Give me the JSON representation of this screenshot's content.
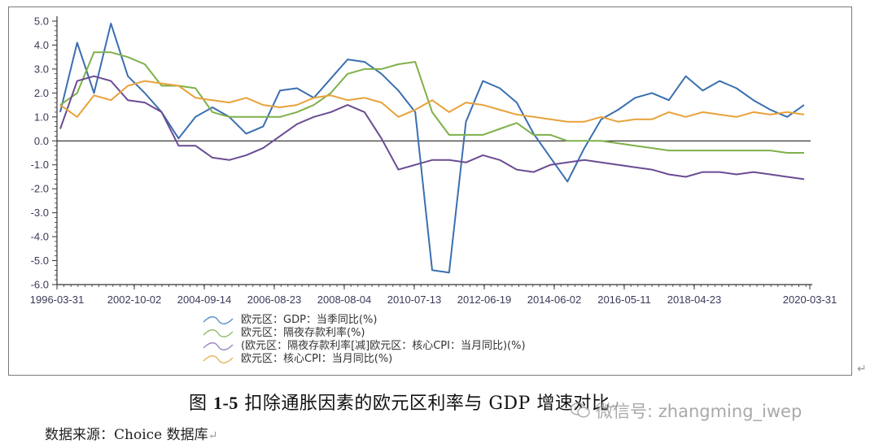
{
  "chart_data": {
    "type": "line",
    "title": "图 1-5  扣除通胀因素的欧元区利率与 GDP 增速对比",
    "xlabel": "",
    "ylabel": "",
    "ylim": [
      -6.0,
      5.0
    ],
    "yticks": [
      "5.0",
      "4.0",
      "3.0",
      "2.0",
      "1.0",
      "0.0",
      "-1.0",
      "-2.0",
      "-3.0",
      "-4.0",
      "-5.0",
      "-6.0"
    ],
    "xticks": [
      "1996-03-31",
      "2002-10-02",
      "2004-09-14",
      "2006-08-23",
      "2008-08-04",
      "2010-07-13",
      "2012-06-19",
      "2014-06-02",
      "2016-05-11",
      "2018-04-23",
      "2020-03-31"
    ],
    "grid": false,
    "legend_position": "bottom",
    "zero_line": true,
    "x": [
      "1999-01",
      "1999-04",
      "1999-07",
      "1999-10",
      "2000-01",
      "2000-07",
      "2001-01",
      "2001-07",
      "2002-01",
      "2002-07",
      "2003-01",
      "2003-07",
      "2004-01",
      "2004-07",
      "2005-01",
      "2005-07",
      "2006-01",
      "2006-07",
      "2007-01",
      "2007-07",
      "2008-01",
      "2008-07",
      "2009-01",
      "2009-07",
      "2010-01",
      "2010-07",
      "2011-01",
      "2011-07",
      "2012-01",
      "2012-07",
      "2013-01",
      "2013-07",
      "2014-01",
      "2014-07",
      "2015-01",
      "2015-07",
      "2016-01",
      "2016-07",
      "2017-01",
      "2017-07",
      "2018-01",
      "2018-07",
      "2019-01",
      "2019-07",
      "2020-01"
    ],
    "series": [
      {
        "name": "欧元区：GDP：当季同比(%)",
        "color": "#3a6fb0",
        "values": [
          1.2,
          4.1,
          2.0,
          4.9,
          2.7,
          2.0,
          1.2,
          0.1,
          1.0,
          1.4,
          1.0,
          0.3,
          0.6,
          2.1,
          2.2,
          1.8,
          2.6,
          3.4,
          3.3,
          2.8,
          2.1,
          1.2,
          -5.4,
          -5.5,
          0.8,
          2.5,
          2.2,
          1.6,
          0.3,
          -0.7,
          -1.7,
          -0.3,
          0.9,
          1.3,
          1.8,
          2.0,
          1.7,
          2.7,
          2.1,
          2.5,
          2.2,
          1.7,
          1.3,
          1.0,
          1.5
        ]
      },
      {
        "name": "欧元区：隔夜存款利率(%)",
        "color": "#7fb04a",
        "values": [
          1.5,
          2.0,
          3.7,
          3.7,
          3.5,
          3.2,
          2.3,
          2.3,
          2.2,
          1.2,
          1.0,
          1.0,
          1.0,
          1.0,
          1.2,
          1.5,
          2.0,
          2.8,
          3.0,
          3.0,
          3.2,
          3.3,
          1.2,
          0.25,
          0.25,
          0.25,
          0.5,
          0.75,
          0.25,
          0.25,
          0.0,
          0.0,
          0.0,
          -0.1,
          -0.2,
          -0.3,
          -0.4,
          -0.4,
          -0.4,
          -0.4,
          -0.4,
          -0.4,
          -0.4,
          -0.5,
          -0.5
        ]
      },
      {
        "name": "(欧元区：隔夜存款利率[减]欧元区：核心CPI：当月同比)(%)",
        "color": "#6a4c93",
        "values": [
          0.5,
          2.5,
          2.7,
          2.5,
          1.7,
          1.6,
          1.2,
          -0.2,
          -0.2,
          -0.7,
          -0.8,
          -0.6,
          -0.3,
          0.2,
          0.7,
          1.0,
          1.2,
          1.5,
          1.2,
          0.1,
          -1.2,
          -1.0,
          -0.8,
          -0.8,
          -0.9,
          -0.6,
          -0.8,
          -1.2,
          -1.3,
          -1.0,
          -0.9,
          -0.8,
          -0.9,
          -1.0,
          -1.1,
          -1.2,
          -1.4,
          -1.5,
          -1.3,
          -1.3,
          -1.4,
          -1.3,
          -1.4,
          -1.5,
          -1.6
        ]
      },
      {
        "name": "欧元区：核心CPI：当月同比(%)",
        "color": "#e8a23a",
        "values": [
          1.5,
          1.0,
          1.9,
          1.7,
          2.3,
          2.5,
          2.4,
          2.3,
          1.8,
          1.7,
          1.6,
          1.8,
          1.5,
          1.4,
          1.5,
          1.8,
          1.9,
          1.7,
          1.8,
          1.6,
          1.0,
          1.3,
          1.7,
          1.2,
          1.6,
          1.5,
          1.3,
          1.1,
          1.0,
          0.9,
          0.8,
          0.8,
          1.0,
          0.8,
          0.9,
          0.9,
          1.2,
          1.0,
          1.2,
          1.1,
          1.0,
          1.2,
          1.1,
          1.2,
          1.1
        ]
      }
    ]
  },
  "legend": {
    "items": [
      {
        "label": "欧元区：GDP：当季同比(%)",
        "color": "#5a8fc8"
      },
      {
        "label": "欧元区：隔夜存款利率(%)",
        "color": "#8fbd6a"
      },
      {
        "label": "(欧元区：隔夜存款利率[减]欧元区：核心CPI：当月同比)(%)",
        "color": "#9a86c0"
      },
      {
        "label": "欧元区：核心CPI：当月同比(%)",
        "color": "#eab35a"
      }
    ]
  },
  "caption": {
    "prefix": "图 ",
    "number": "1-5",
    "text": "  扣除通胀因素的欧元区利率与 GDP 增速对比",
    "return_mark": "↵"
  },
  "source": {
    "text": "数据来源：Choice 数据库",
    "return_mark": "↵"
  },
  "watermark": {
    "text": "微信号: zhangming_iwep"
  },
  "page_mark": "↵"
}
